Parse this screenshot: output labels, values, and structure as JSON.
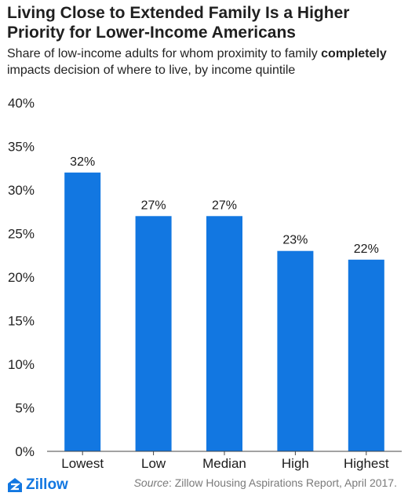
{
  "title": "Living Close to Extended Family Is a Higher Priority for Lower-Income Americans",
  "subtitle": {
    "part1": "Share of low-income adults for whom proximity to family ",
    "emphasis": "completely",
    "part2": " impacts decision of where to live, by income quintile"
  },
  "chart_data": {
    "type": "bar",
    "categories": [
      "Lowest",
      "Low",
      "Median",
      "High",
      "Highest"
    ],
    "values": [
      32,
      27,
      27,
      23,
      22
    ],
    "data_labels": [
      "32%",
      "27%",
      "27%",
      "23%",
      "22%"
    ],
    "ylim": [
      0,
      40
    ],
    "yticks": [
      0,
      5,
      10,
      15,
      20,
      25,
      30,
      35,
      40
    ],
    "ytick_labels": [
      "0%",
      "5%",
      "10%",
      "15%",
      "20%",
      "25%",
      "30%",
      "35%",
      "40%"
    ],
    "grid": false,
    "bar_color": "#1277e1"
  },
  "footer": {
    "logo_text": "Zillow",
    "logo_icon": "zillow-logo-icon",
    "source_label": "Source",
    "source_text": ": Zillow Housing Aspirations Report, April 2017."
  },
  "colors": {
    "brand": "#1277e1",
    "axis": "#444444"
  }
}
